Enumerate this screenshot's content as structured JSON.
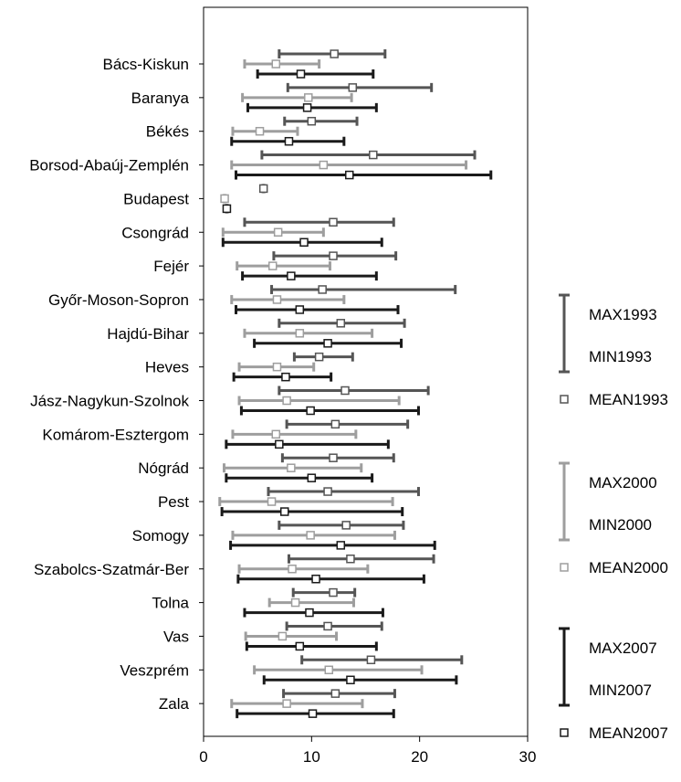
{
  "chart_data": {
    "type": "range-bar",
    "title": "",
    "xlabel": "",
    "ylabel": "",
    "xlim": [
      0,
      30
    ],
    "x_ticks": [
      "0",
      "10",
      "20",
      "30"
    ],
    "grid": false,
    "legend_position": "right",
    "series_colors": {
      "1993": "#555555",
      "2000": "#9e9e9e",
      "2007": "#1a1a1a"
    },
    "categories": [
      "Bács-Kiskun",
      "Baranya",
      "Békés",
      "Borsod-Abaúj-Zemplén",
      "Budapest",
      "Csongrád",
      "Fejér",
      "Győr-Moson-Sopron",
      "Hajdú-Bihar",
      "Heves",
      "Jász-Nagykun-Szolnok",
      "Komárom-Esztergom",
      "Nógrád",
      "Pest",
      "Somogy",
      "Szabolcs-Szatmár-Ber",
      "Tolna",
      "Vas",
      "Veszprém",
      "Zala"
    ],
    "series": [
      {
        "year": "1993",
        "min": [
          7.0,
          7.8,
          7.5,
          5.4,
          5.5,
          3.8,
          6.5,
          6.3,
          7.0,
          8.4,
          7.0,
          7.7,
          7.3,
          6.0,
          7.0,
          7.9,
          8.3,
          7.7,
          9.1,
          7.4
        ],
        "max": [
          16.8,
          21.1,
          14.2,
          25.1,
          5.6,
          17.6,
          17.8,
          23.3,
          18.6,
          13.8,
          20.8,
          18.9,
          17.6,
          19.9,
          18.5,
          21.3,
          14.0,
          16.5,
          23.9,
          17.7
        ],
        "mean": [
          12.1,
          13.8,
          10.0,
          15.7,
          5.55,
          12.0,
          12.0,
          11.0,
          12.7,
          10.7,
          13.1,
          12.2,
          12.0,
          11.5,
          13.2,
          13.6,
          12.0,
          11.5,
          15.5,
          12.2
        ]
      },
      {
        "year": "2000",
        "min": [
          3.8,
          3.6,
          2.7,
          2.6,
          1.9,
          1.8,
          3.1,
          2.6,
          3.8,
          3.3,
          3.3,
          2.7,
          1.9,
          1.5,
          2.7,
          3.3,
          6.1,
          3.9,
          4.7,
          2.6
        ],
        "max": [
          10.7,
          13.7,
          8.7,
          24.3,
          2.0,
          11.1,
          11.7,
          13.0,
          15.6,
          10.2,
          18.1,
          14.1,
          14.6,
          17.5,
          17.7,
          15.2,
          13.9,
          12.3,
          20.2,
          14.7
        ],
        "mean": [
          6.7,
          9.7,
          5.2,
          11.1,
          1.95,
          6.9,
          6.4,
          6.8,
          8.9,
          6.8,
          7.7,
          6.7,
          8.1,
          6.3,
          9.9,
          8.2,
          8.5,
          7.3,
          11.6,
          7.7
        ]
      },
      {
        "year": "2007",
        "min": [
          5.0,
          4.1,
          2.6,
          3.0,
          2.1,
          1.8,
          3.6,
          3.0,
          4.7,
          2.8,
          3.5,
          2.1,
          2.1,
          1.7,
          2.5,
          3.2,
          3.8,
          4.0,
          5.6,
          3.1
        ],
        "max": [
          15.7,
          16.0,
          13.0,
          26.6,
          2.2,
          16.5,
          16.0,
          18.0,
          18.3,
          11.8,
          19.9,
          17.1,
          15.6,
          18.4,
          21.4,
          20.4,
          16.6,
          16.0,
          23.4,
          17.6
        ],
        "mean": [
          9.0,
          9.6,
          7.9,
          13.5,
          2.15,
          9.3,
          8.1,
          8.9,
          11.5,
          7.6,
          9.9,
          7.0,
          10.0,
          7.5,
          12.7,
          10.4,
          9.8,
          8.9,
          13.6,
          10.1
        ]
      }
    ],
    "legend": [
      {
        "year": "1993",
        "max_label": "MAX1993",
        "min_label": "MIN1993",
        "mean_label": "MEAN1993"
      },
      {
        "year": "2000",
        "max_label": "MAX2000",
        "min_label": "MIN2000",
        "mean_label": "MEAN2000"
      },
      {
        "year": "2007",
        "max_label": "MAX2007",
        "min_label": "MIN2007",
        "mean_label": "MEAN2007"
      }
    ]
  }
}
